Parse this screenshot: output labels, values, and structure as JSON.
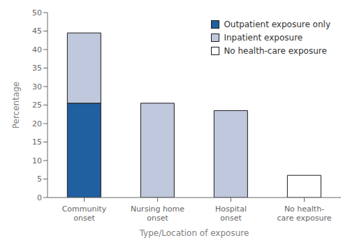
{
  "chart_data": {
    "type": "bar",
    "stacked": true,
    "categories": [
      "Community\nonset",
      "Nursing home\nonset",
      "Hospital\nonset",
      "No health-\ncare exposure"
    ],
    "series": [
      {
        "name": "Outpatient exposure only",
        "color": "#2060a0",
        "values": [
          25.5,
          0,
          0,
          0
        ]
      },
      {
        "name": "Inpatient exposure",
        "color": "#bfc8dc",
        "values": [
          19.0,
          25.5,
          23.5,
          0
        ]
      },
      {
        "name": "No health-care exposure",
        "color": "#ffffff",
        "values": [
          0,
          0,
          0,
          6.0
        ]
      }
    ],
    "xlabel": "Type/Location of exposure",
    "ylabel": "Percentage",
    "ylim": [
      0,
      50
    ],
    "yticks": [
      0,
      5,
      10,
      15,
      20,
      25,
      30,
      35,
      40,
      45,
      50
    ],
    "grid": false,
    "legend": "upper right"
  }
}
